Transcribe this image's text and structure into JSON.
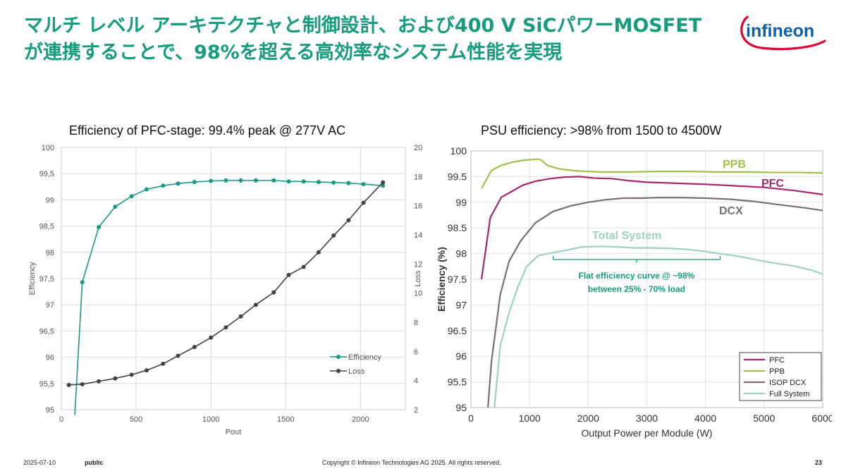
{
  "header": {
    "title_line1": "マルチ レベル アーキテクチャと制御設計、および400 V SiCパワーMOSFET",
    "title_line2": "が連携することで、98%を超える高効率なシステム性能を実現",
    "logo_text": "infineon",
    "title_color": "#179c7d",
    "logo_color": "#0f5fa8",
    "logo_arc_color": "#e30034"
  },
  "footer": {
    "date": "2025-07-10",
    "classification": "public",
    "copyright": "Copyright © Infineon Technologies AG 2025. All rights reserved.",
    "page_number": "23"
  },
  "chart_data": [
    {
      "type": "line",
      "title": "Efficiency of PFC-stage: 99.4% peak @ 277V AC",
      "xlabel": "Pout",
      "ylabel": "Efficiency",
      "y2label": "Loss",
      "xlim": [
        0,
        2300
      ],
      "ylim": [
        95,
        100
      ],
      "y2lim": [
        2,
        20
      ],
      "x_ticks": [
        0,
        500,
        1000,
        1500,
        2000
      ],
      "x_tick_labels": [
        "0",
        "500",
        "1000",
        "1500",
        "2000"
      ],
      "y_ticks": [
        95,
        95.5,
        96,
        96.5,
        97,
        97.5,
        98,
        98.5,
        99,
        99.5,
        100
      ],
      "y_tick_labels": [
        "95",
        "95,5",
        "96",
        "96,5",
        "97",
        "97,5",
        "98",
        "98,5",
        "99",
        "99,5",
        "100"
      ],
      "y2_ticks": [
        2,
        4,
        6,
        8,
        10,
        12,
        14,
        16,
        18,
        20
      ],
      "y2_tick_labels": [
        "2",
        "4",
        "6",
        "8",
        "10",
        "12",
        "14",
        "16",
        "18",
        "20"
      ],
      "grid": true,
      "legend": "bottom-right",
      "series": [
        {
          "name": "Efficiency",
          "axis": "left",
          "color": "#1a9985",
          "x": [
            90,
            140,
            250,
            360,
            470,
            570,
            680,
            780,
            890,
            1000,
            1100,
            1200,
            1300,
            1420,
            1520,
            1620,
            1720,
            1820,
            1920,
            2020,
            2150
          ],
          "y": [
            94.9,
            97.43,
            98.48,
            98.87,
            99.07,
            99.2,
            99.27,
            99.31,
            99.34,
            99.36,
            99.37,
            99.37,
            99.37,
            99.37,
            99.35,
            99.35,
            99.34,
            99.33,
            99.32,
            99.3,
            99.27
          ],
          "marker_start": 1
        },
        {
          "name": "Loss",
          "axis": "right",
          "color": "#444444",
          "x": [
            50,
            140,
            250,
            360,
            470,
            570,
            680,
            780,
            890,
            1000,
            1100,
            1200,
            1300,
            1420,
            1520,
            1620,
            1720,
            1820,
            1920,
            2020,
            2150
          ],
          "y": [
            3.7,
            3.75,
            3.95,
            4.15,
            4.4,
            4.7,
            5.15,
            5.7,
            6.3,
            6.95,
            7.65,
            8.4,
            9.2,
            10.05,
            11.25,
            11.8,
            12.8,
            13.95,
            15.0,
            16.2,
            17.6
          ],
          "marker_start": 0
        }
      ]
    },
    {
      "type": "line",
      "title": "PSU efficiency: >98% from 1500 to 4500W",
      "xlabel": "Output Power per Module (W)",
      "ylabel": "Efficiency (%)",
      "xlim": [
        0,
        6000
      ],
      "ylim": [
        95,
        100
      ],
      "x_ticks": [
        0,
        1000,
        2000,
        3000,
        4000,
        5000,
        6000
      ],
      "x_tick_labels": [
        "0",
        "1000",
        "2000",
        "3000",
        "4000",
        "5000",
        "6000"
      ],
      "y_ticks": [
        95,
        95.5,
        96,
        96.5,
        97,
        97.5,
        98,
        98.5,
        99,
        99.5,
        100
      ],
      "y_tick_labels": [
        "95",
        "95.5",
        "96",
        "96.5",
        "97",
        "97.5",
        "98",
        "98.5",
        "99",
        "99.5",
        "100"
      ],
      "grid": true,
      "legend": "bottom-right",
      "series": [
        {
          "name": "PFC",
          "label": "PFC",
          "color": "#a3286e",
          "x": [
            180,
            330,
            520,
            680,
            880,
            1100,
            1350,
            1600,
            1850,
            2100,
            2400,
            2700,
            3000,
            3500,
            4000,
            4500,
            5000,
            5500,
            6000
          ],
          "y": [
            97.5,
            98.7,
            99.1,
            99.2,
            99.33,
            99.41,
            99.46,
            99.49,
            99.5,
            99.47,
            99.46,
            99.42,
            99.39,
            99.37,
            99.35,
            99.32,
            99.29,
            99.23,
            99.15
          ]
        },
        {
          "name": "PPB",
          "label": "PPB",
          "color": "#a3bf4f",
          "x": [
            180,
            350,
            520,
            700,
            900,
            1150,
            1200,
            1300,
            1500,
            1800,
            2200,
            2700,
            3200,
            3700,
            4200,
            4700,
            5200,
            5600,
            6000
          ],
          "y": [
            99.27,
            99.62,
            99.72,
            99.78,
            99.82,
            99.84,
            99.82,
            99.72,
            99.65,
            99.61,
            99.59,
            99.59,
            99.6,
            99.6,
            99.59,
            99.59,
            99.58,
            99.58,
            99.57
          ]
        },
        {
          "name": "ISOP DCX",
          "label": "DCX",
          "color": "#7a6e76",
          "x": [
            290,
            350,
            500,
            650,
            850,
            1100,
            1400,
            1700,
            2000,
            2300,
            2600,
            2900,
            3200,
            3600,
            4000,
            4400,
            4800,
            5200,
            5700,
            6000
          ],
          "y": [
            95.0,
            95.9,
            97.2,
            97.85,
            98.25,
            98.6,
            98.82,
            98.93,
            99.0,
            99.05,
            99.08,
            99.08,
            99.09,
            99.09,
            99.08,
            99.06,
            99.02,
            98.96,
            98.89,
            98.84
          ]
        },
        {
          "name": "Full System",
          "label": "Total System",
          "color": "#9fd2be",
          "x": [
            400,
            500,
            650,
            800,
            950,
            1150,
            1400,
            1650,
            1900,
            2200,
            2500,
            2800,
            3100,
            3400,
            3700,
            4000,
            4300,
            4600,
            4900,
            5200,
            5500,
            5800,
            6000
          ],
          "y": [
            95.0,
            96.2,
            96.85,
            97.35,
            97.75,
            97.96,
            98.02,
            98.07,
            98.13,
            98.14,
            98.13,
            98.11,
            98.11,
            98.1,
            98.08,
            98.04,
            97.99,
            97.94,
            97.87,
            97.81,
            97.76,
            97.68,
            97.6
          ]
        }
      ],
      "annotation": {
        "line1": "Flat efficiency curve @ ~98%",
        "line2": "between 25% - 70% load",
        "range_x": [
          1400,
          4250
        ],
        "color": "#179c7d"
      }
    }
  ]
}
